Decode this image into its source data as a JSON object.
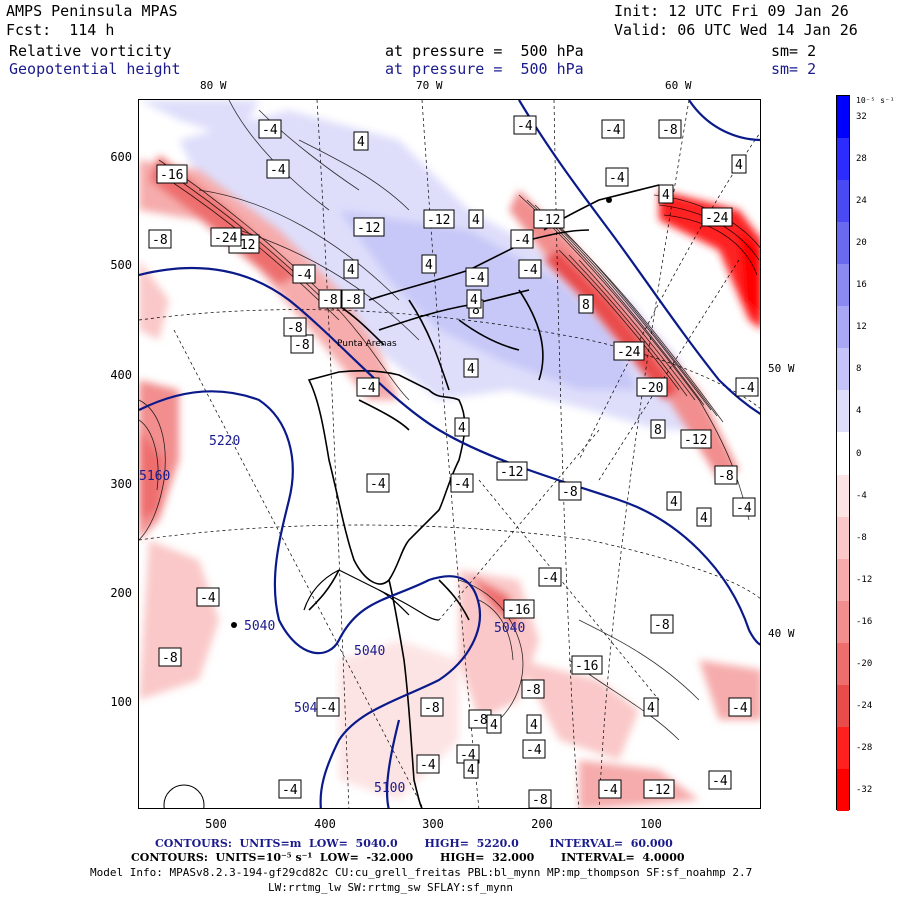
{
  "header": {
    "model": "AMPS Peninsula MPAS",
    "fcst": "Fcst:  114 h",
    "init": "Init: 12 UTC Fri 09 Jan 26",
    "valid": "Valid: 06 UTC Wed 14 Jan 26",
    "field1": "Relative vorticity",
    "field2": "Geopotential height",
    "pressure1": "at pressure =  500 hPa",
    "pressure2": "at pressure =  500 hPa",
    "sm1": "sm= 2",
    "sm2": "sm= 2"
  },
  "axes": {
    "y_ticks": [
      "600",
      "500",
      "400",
      "300",
      "200",
      "100"
    ],
    "x_ticks": [
      "500",
      "400",
      "300",
      "200",
      "100"
    ],
    "lon_top": [
      "80 W",
      "70 W",
      "60 W"
    ],
    "lon_right": [
      "50 W",
      "40 W"
    ]
  },
  "colorbar": {
    "unit_label": "10⁻⁵ s⁻¹",
    "labels": [
      "32",
      "28",
      "24",
      "20",
      "16",
      "12",
      "8",
      "4",
      "0",
      "-4",
      "-8",
      "-12",
      "-16",
      "-20",
      "-24",
      "-28",
      "-32"
    ],
    "colors": [
      "#0000ff",
      "#2c2cff",
      "#4a4af5",
      "#6a6af0",
      "#8a8af2",
      "#a8a8f4",
      "#c4c4f8",
      "#dedefb",
      "#ffffff",
      "#fde4e4",
      "#fac8c8",
      "#f6acac",
      "#f28e8e",
      "#ee6e6e",
      "#ea4c4c",
      "#ff2020",
      "#ff0000"
    ]
  },
  "footer": {
    "line1": "CONTOURS:  UNITS=m  LOW=  5040.0       HIGH=  5220.0        INTERVAL=  60.000",
    "line2": "CONTOURS:  UNITS=10⁻⁵ s⁻¹  LOW=  -32.000       HIGH=  32.000       INTERVAL=  4.0000",
    "line3": "Model Info: MPASv8.2.3-194-gf29cd82c CU:cu_grell_freitas PBL:bl_mynn MP:mp_thompson SF:sf_noahmp 2.7",
    "line4": "LW:rrtmg_lw SW:rrtmg_sw SFLAY:sf_mynn"
  },
  "contour_labels": {
    "height": [
      "5220",
      "5040",
      "5160",
      "5040",
      "5040",
      "5040",
      "5100"
    ],
    "vorticity": [
      "-4",
      "-4",
      "4",
      "-4",
      "-16",
      "-12",
      "-12",
      "-8",
      "-4",
      "-4",
      "4",
      "-4",
      "4",
      "-12",
      "-24",
      "-8",
      "-24",
      "-12",
      "4",
      "4",
      "-4",
      "-8",
      "-8",
      "4",
      "-4",
      "-8",
      "-4",
      "8",
      "-8",
      "-4",
      "8",
      "4",
      "-24",
      "4",
      "-20",
      "-4",
      "4",
      "8",
      "-12",
      "-4",
      "-4",
      "-12",
      "-8",
      "-8",
      "-4",
      "4",
      "4",
      "-4",
      "-4",
      "-16",
      "-8",
      "-8",
      "-8",
      "-4",
      "-4",
      "-8",
      "-16",
      "-4",
      "4",
      "-8",
      "-4",
      "4",
      "-4",
      "4",
      "-8",
      "-4",
      "-4",
      "-12",
      "-4",
      "4"
    ]
  },
  "place_label": "Punta Arenas"
}
